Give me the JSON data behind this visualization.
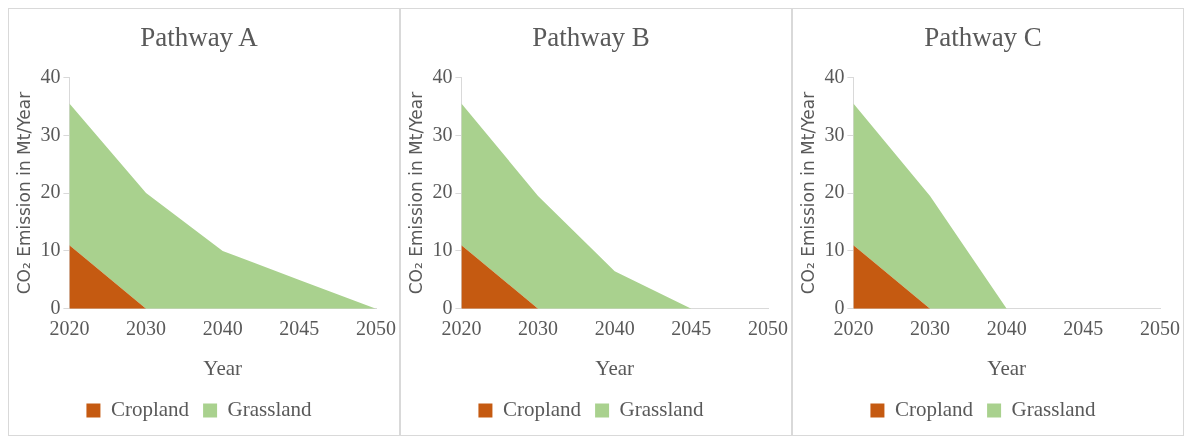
{
  "chart_data": [
    {
      "type": "area",
      "title": "Pathway A",
      "xlabel": "Year",
      "ylabel": "CO₂ Emission in Mt/Year",
      "categories": [
        "2020",
        "2030",
        "2040",
        "2045",
        "2050"
      ],
      "stacked": true,
      "ylim": [
        0,
        40
      ],
      "yticks": [
        0,
        10,
        20,
        30,
        40
      ],
      "grid": false,
      "legend": "bottom",
      "series": [
        {
          "name": "Cropland",
          "color": "#c55a11",
          "values": [
            11,
            0,
            0,
            0,
            0
          ]
        },
        {
          "name": "Grassland",
          "color": "#a9d18e",
          "values": [
            24.5,
            20,
            10,
            5,
            0
          ]
        }
      ]
    },
    {
      "type": "area",
      "title": "Pathway B",
      "xlabel": "Year",
      "ylabel": "CO₂ Emission in Mt/Year",
      "categories": [
        "2020",
        "2030",
        "2040",
        "2045",
        "2050"
      ],
      "stacked": true,
      "ylim": [
        0,
        40
      ],
      "yticks": [
        0,
        10,
        20,
        30,
        40
      ],
      "grid": false,
      "legend": "bottom",
      "series": [
        {
          "name": "Cropland",
          "color": "#c55a11",
          "values": [
            11,
            0,
            0,
            0,
            0
          ]
        },
        {
          "name": "Grassland",
          "color": "#a9d18e",
          "values": [
            24.5,
            19.5,
            6.5,
            0,
            0
          ]
        }
      ]
    },
    {
      "type": "area",
      "title": "Pathway C",
      "xlabel": "Year",
      "ylabel": "CO₂ Emission in Mt/Year",
      "categories": [
        "2020",
        "2030",
        "2040",
        "2045",
        "2050"
      ],
      "stacked": true,
      "ylim": [
        0,
        40
      ],
      "yticks": [
        0,
        10,
        20,
        30,
        40
      ],
      "grid": false,
      "legend": "bottom",
      "series": [
        {
          "name": "Cropland",
          "color": "#c55a11",
          "values": [
            11,
            0,
            0,
            0,
            0
          ]
        },
        {
          "name": "Grassland",
          "color": "#a9d18e",
          "values": [
            24.5,
            19.5,
            0,
            0,
            0
          ]
        }
      ]
    }
  ]
}
